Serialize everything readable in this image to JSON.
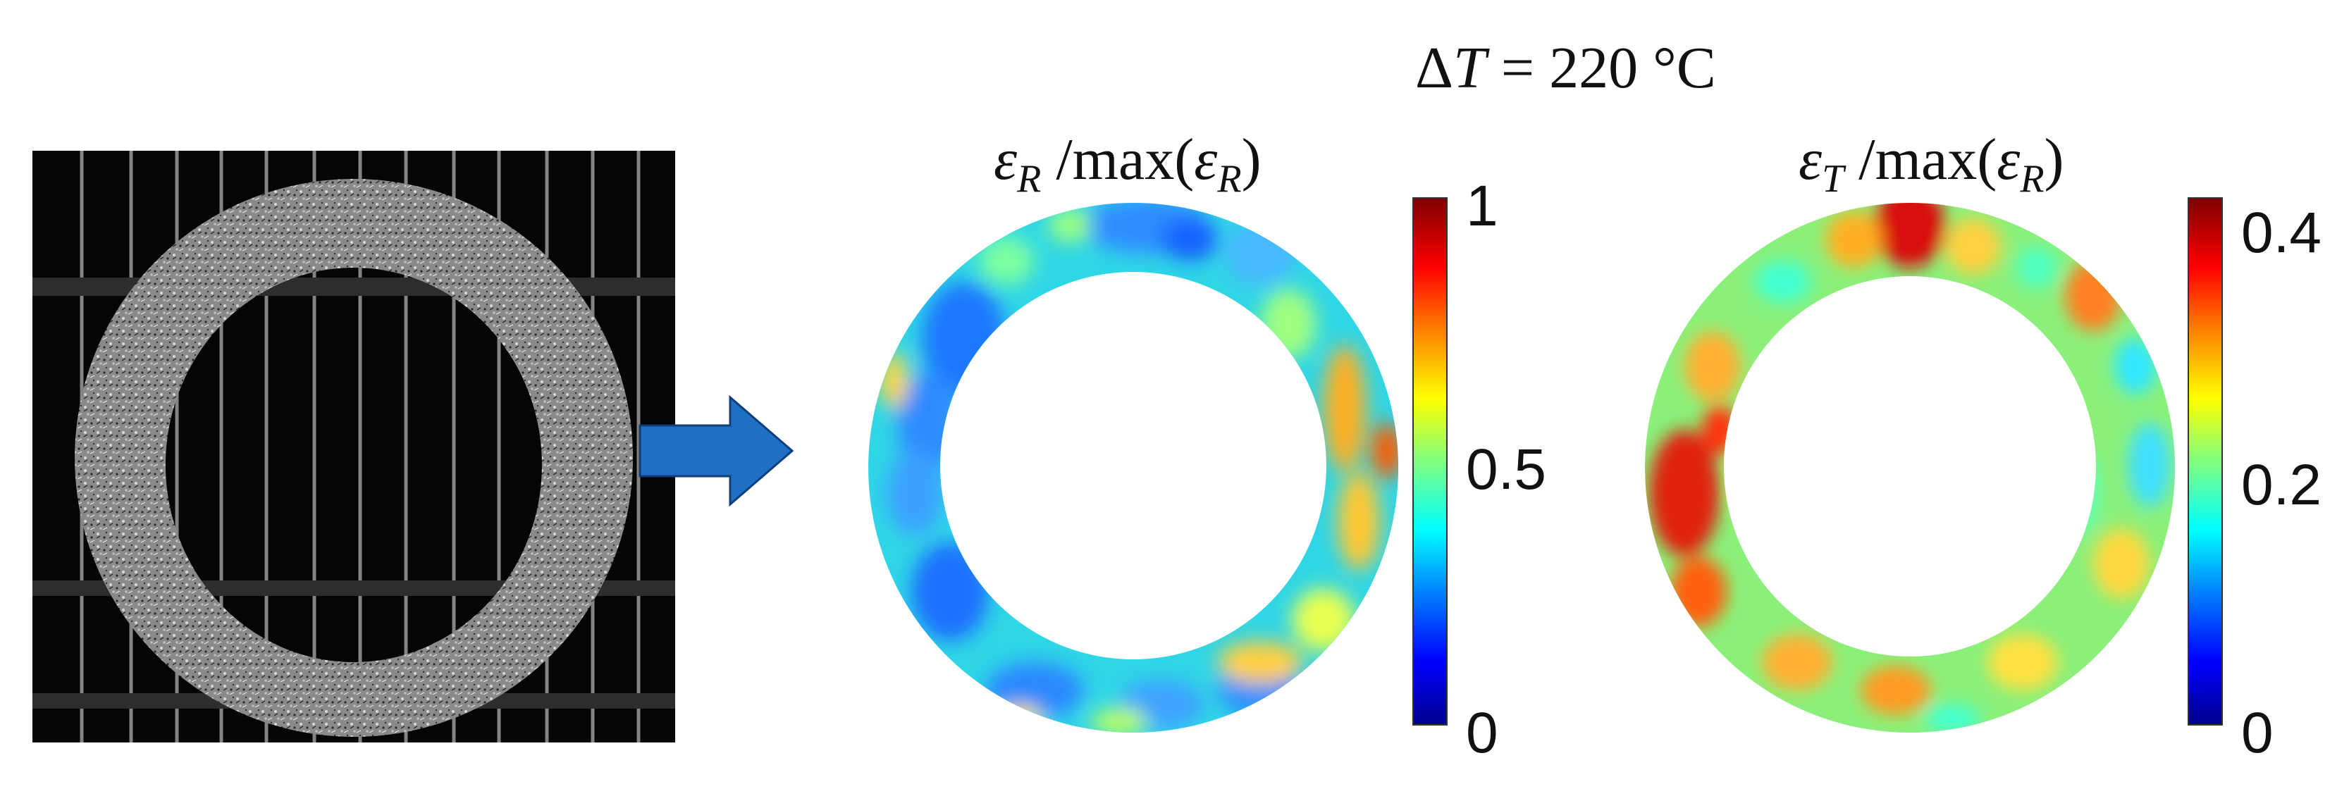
{
  "figure": {
    "delta_t": {
      "symbol": "T",
      "prefix": "Δ",
      "value_text": " = 220 °C"
    },
    "maps": [
      {
        "title": {
          "numer_symbol": "ε",
          "numer_sub": "R",
          "denom_prefix": " /max(",
          "denom_symbol": "ε",
          "denom_sub": "R",
          "denom_suffix": ")"
        },
        "colorbar": {
          "ticks": [
            "1",
            "0.5",
            "0"
          ],
          "range": [
            0,
            1
          ]
        }
      },
      {
        "title": {
          "numer_symbol": "ε",
          "numer_sub": "T",
          "denom_prefix": " /max(",
          "denom_symbol": "ε",
          "denom_sub": "R",
          "denom_suffix": ")"
        },
        "colorbar": {
          "ticks": [
            "0.4",
            "0.2",
            "0"
          ],
          "range": [
            0,
            0.42
          ]
        }
      }
    ],
    "colors": {
      "arrow": "#1f6fc5",
      "arrow_stroke": "#0f3f78",
      "colormap": [
        "#00008f",
        "#0000ff",
        "#0080ff",
        "#00ffff",
        "#80ff80",
        "#ffff00",
        "#ff8000",
        "#ff0000",
        "#800000"
      ]
    }
  }
}
